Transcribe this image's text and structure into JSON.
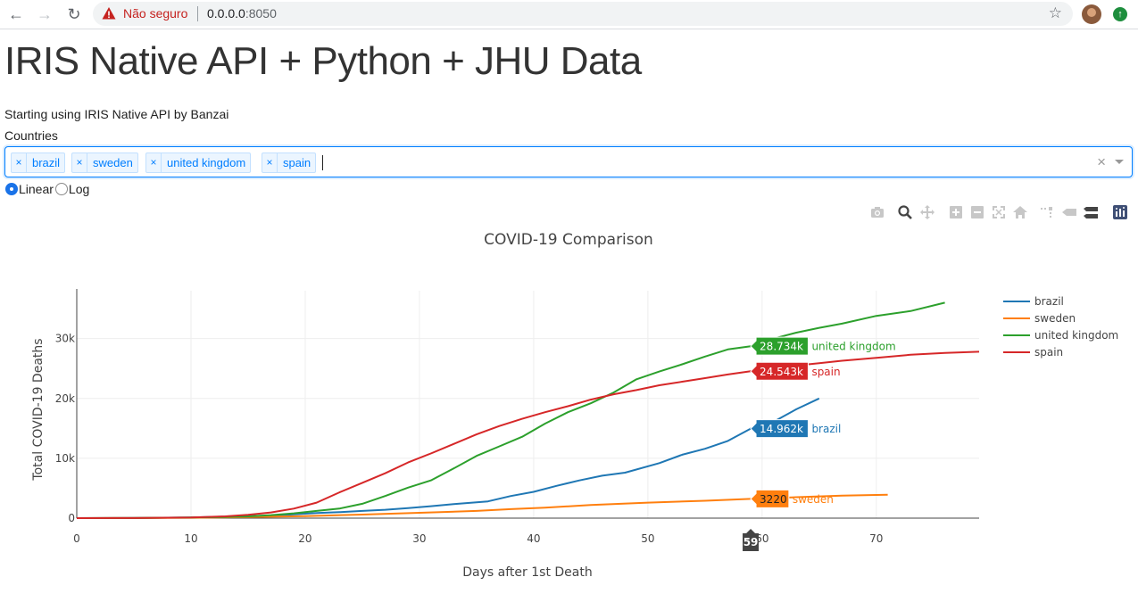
{
  "browser": {
    "security_label": "Não seguro",
    "url_host": "0.0.0.0",
    "url_port": ":8050",
    "warning_color": "#c5221f"
  },
  "page": {
    "title": "IRIS Native API + Python + JHU Data",
    "subtitle": "Starting using IRIS Native API by Banzai",
    "countries_label": "Countries"
  },
  "countries_select": {
    "chips": [
      "brazil",
      "sweden",
      "united kingdom",
      "spain"
    ],
    "remove_glyph": "×",
    "clear_glyph": "×"
  },
  "scale_options": {
    "selected": "Linear",
    "items": [
      "Linear",
      "Log"
    ]
  },
  "modebar": {
    "icons": [
      "camera-icon",
      "zoom-icon",
      "pan-icon",
      "zoom-in-icon",
      "zoom-out-icon",
      "autoscale-icon",
      "reset-axes-icon",
      "spike-lines-icon",
      "hover-closest-icon",
      "hover-compare-icon",
      "plotly-logo-icon"
    ]
  },
  "chart_data": {
    "type": "line",
    "title": "COVID-19 Comparison",
    "xlabel": "Days after 1st Death",
    "ylabel": "Total COVID-19 Deaths",
    "xlim": [
      0,
      79
    ],
    "ylim": [
      0,
      38000
    ],
    "x_ticks": [
      0,
      10,
      20,
      30,
      40,
      50,
      60,
      70
    ],
    "y_ticks": [
      {
        "value": 0,
        "label": "0"
      },
      {
        "value": 10000,
        "label": "10k"
      },
      {
        "value": 20000,
        "label": "20k"
      },
      {
        "value": 30000,
        "label": "30k"
      }
    ],
    "grid": true,
    "legend_position": "top-right",
    "hover_x": 59,
    "series": [
      {
        "name": "brazil",
        "color": "#1f77b4",
        "hover_label": "14.962k",
        "x": [
          0,
          5,
          10,
          13,
          15,
          17,
          19,
          21,
          23,
          25,
          27,
          29,
          31,
          33,
          36,
          38,
          40,
          42,
          44,
          46,
          48,
          51,
          53,
          55,
          57,
          59,
          61,
          63,
          65
        ],
        "y": [
          0,
          30,
          120,
          250,
          330,
          430,
          620,
          850,
          1000,
          1200,
          1400,
          1680,
          2000,
          2350,
          2800,
          3700,
          4400,
          5400,
          6300,
          7100,
          7600,
          9200,
          10600,
          11600,
          12900,
          14962,
          16100,
          18200,
          20000
        ]
      },
      {
        "name": "sweden",
        "color": "#ff7f0e",
        "hover_label": "3220",
        "x": [
          0,
          5,
          10,
          15,
          20,
          25,
          30,
          35,
          38,
          41,
          45,
          50,
          55,
          59,
          63,
          67,
          71
        ],
        "y": [
          0,
          10,
          60,
          180,
          350,
          600,
          900,
          1200,
          1500,
          1750,
          2200,
          2600,
          2900,
          3220,
          3500,
          3750,
          3900
        ]
      },
      {
        "name": "united kingdom",
        "color": "#2ca02c",
        "hover_label": "28.734k",
        "x": [
          0,
          5,
          10,
          13,
          15,
          17,
          19,
          21,
          23,
          25,
          27,
          29,
          31,
          33,
          35,
          37,
          39,
          41,
          43,
          45,
          47,
          49,
          51,
          53,
          55,
          57,
          59,
          61,
          63,
          65,
          67,
          70,
          73,
          76
        ],
        "y": [
          0,
          20,
          100,
          200,
          300,
          500,
          800,
          1200,
          1600,
          2400,
          3700,
          5100,
          6300,
          8300,
          10400,
          12000,
          13600,
          15800,
          17700,
          19200,
          21000,
          23200,
          24500,
          25700,
          27000,
          28200,
          28734,
          30000,
          31000,
          31800,
          32500,
          33800,
          34600,
          36000
        ]
      },
      {
        "name": "spain",
        "color": "#d62728",
        "hover_label": "24.543k",
        "x": [
          0,
          5,
          10,
          13,
          15,
          17,
          19,
          21,
          23,
          25,
          27,
          29,
          31,
          33,
          35,
          37,
          39,
          41,
          43,
          45,
          47,
          49,
          51,
          53,
          55,
          57,
          59,
          61,
          63,
          65,
          67,
          70,
          73,
          76,
          79
        ],
        "y": [
          0,
          20,
          100,
          300,
          550,
          950,
          1600,
          2600,
          4300,
          5900,
          7500,
          9300,
          10800,
          12400,
          14000,
          15400,
          16600,
          17700,
          18700,
          19800,
          20700,
          21400,
          22200,
          22800,
          23400,
          24000,
          24543,
          25100,
          25500,
          25900,
          26300,
          26800,
          27300,
          27600,
          27800
        ]
      }
    ]
  }
}
